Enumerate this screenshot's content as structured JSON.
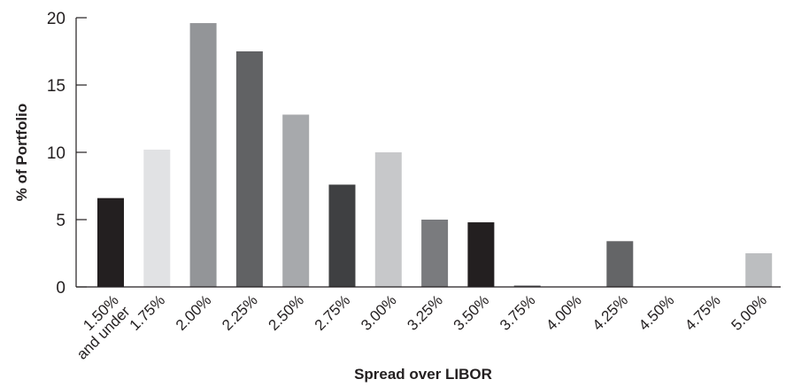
{
  "chart_data": {
    "type": "bar",
    "title": "",
    "xlabel": "Spread over LIBOR",
    "ylabel": "% of Portfolio",
    "ylim": [
      0,
      20
    ],
    "yticks": [
      "0",
      "5",
      "10",
      "15",
      "20"
    ],
    "ytick_values": [
      0,
      5,
      10,
      15,
      20
    ],
    "grid": false,
    "categories": [
      [
        "1.50%",
        "and under"
      ],
      [
        "1.75%"
      ],
      [
        "2.00%"
      ],
      [
        "2.25%"
      ],
      [
        "2.50%"
      ],
      [
        "2.75%"
      ],
      [
        "3.00%"
      ],
      [
        "3.25%"
      ],
      [
        "3.50%"
      ],
      [
        "3.75%"
      ],
      [
        "4.00%"
      ],
      [
        "4.25%"
      ],
      [
        "4.50%"
      ],
      [
        "4.75%"
      ],
      [
        "5.00%"
      ]
    ],
    "values": [
      6.6,
      10.2,
      19.6,
      17.5,
      12.8,
      7.6,
      10.0,
      5.0,
      4.8,
      0.1,
      0,
      3.4,
      0,
      0,
      2.5
    ],
    "colors": [
      "#231f20",
      "#e1e2e4",
      "#939598",
      "#616264",
      "#a7a9ac",
      "#3f4042",
      "#c7c8ca",
      "#7a7b7e",
      "#231f20",
      "#58595b",
      "#bcbec0",
      "#646567",
      "#bcbec0",
      "#bcbec0",
      "#bcbec0"
    ]
  }
}
